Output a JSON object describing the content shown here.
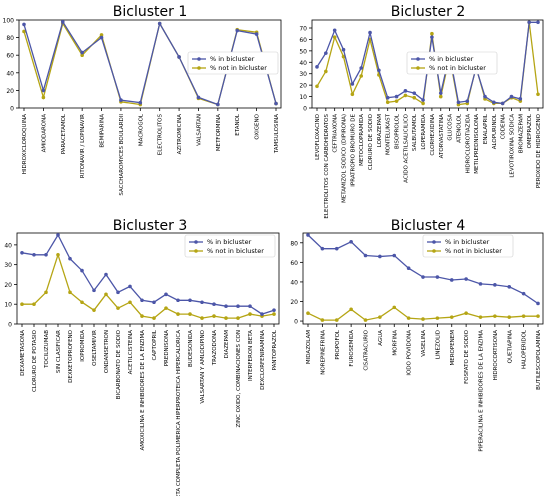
{
  "series_colors": {
    "in": "#4c56a8",
    "not_in": "#b5a514"
  },
  "chart_data": [
    {
      "type": "line",
      "title": "Bicluster 1",
      "legend": "center-right",
      "ylim": [
        0,
        100
      ],
      "yticks": [
        0,
        20,
        40,
        60,
        80,
        100
      ],
      "categories": [
        "HIDROXICLOROQUINA",
        "AMIODARONA",
        "PARACETAMOL",
        "RITONAVIR / LOPINAVIR",
        "BEMIPARINA",
        "SACCHAROMYCES BOULARDII",
        "MACROGOL",
        "ELECTROLITOS",
        "AZITROMICINA",
        "VALSARTAN",
        "METFORMINA",
        "ETANOL",
        "OXIGENO",
        "TAMSULOSINA"
      ],
      "series": [
        {
          "name": "% in bicluster",
          "values": [
            95,
            20,
            98,
            63,
            80,
            9,
            6,
            96,
            58,
            12,
            4,
            88,
            84,
            5
          ]
        },
        {
          "name": "% not in bicluster",
          "values": [
            87,
            12,
            96,
            60,
            83,
            7,
            4,
            96,
            58,
            11,
            4,
            89,
            86,
            5
          ]
        }
      ]
    },
    {
      "type": "line",
      "title": "Bicluster 2",
      "legend": "center-right",
      "ylim": [
        0,
        77
      ],
      "yticks": [
        0,
        10,
        20,
        30,
        40,
        50,
        60,
        70
      ],
      "categories": [
        "LEVOFLOXACINO",
        "ELECTROLITOS CON CARBOHIDRATOS",
        "CEFTRIAXONA",
        "METAMIZOL SODICO (DIPIRONA)",
        "IPRATROPIO BROMURO DE",
        "METOCLOPRAMIDA",
        "CLORURO DE SODIO",
        "LORAZEPAM",
        "MONTELUKAST",
        "BISOPROLOL",
        "ACIDO ACETILSALICILICO",
        "SALBUTAMOL",
        "LOPERAMIDA",
        "CLORHEXIDINA",
        "ATORVASTATINA",
        "GLUCOSA",
        "ATENOLOL",
        "HIDROCLOROTIAZIDA",
        "METILPREDNISOLONA",
        "ENALAPRIL",
        "ALOPURINOL",
        "CODEINA",
        "LEVOTIROXINA SODICA",
        "BROMAZEPAM",
        "OMEPRAZOL",
        "PEROXIDO DE HIDROGENO"
      ],
      "series": [
        {
          "name": "% in bicluster",
          "values": [
            36,
            48,
            68,
            51,
            21,
            35,
            66,
            33,
            9,
            10,
            15,
            13,
            7,
            62,
            13,
            47,
            5,
            6,
            35,
            10,
            5,
            4,
            10,
            8,
            75,
            75
          ]
        },
        {
          "name": "% not in bicluster",
          "values": [
            19,
            32,
            62,
            45,
            12,
            28,
            60,
            29,
            5,
            6,
            11,
            9,
            4,
            65,
            10,
            45,
            3,
            4,
            36,
            8,
            4,
            4,
            9,
            6,
            75,
            12
          ]
        }
      ]
    },
    {
      "type": "line",
      "title": "Bicluster 3",
      "legend": "top-right",
      "ylim": [
        0,
        46
      ],
      "yticks": [
        0,
        10,
        20,
        30,
        40
      ],
      "categories": [
        "DEXAMETASONA",
        "CLORURO DE POTASIO",
        "TOCILIZUMAB",
        "SIN CLASIFICAR",
        "DEXKETOPROFENO",
        "IOPROMIDA",
        "OSELTAMIVIR",
        "ONDANSETRON",
        "BICARBONATO DE SODIO",
        "ACETILCISTEINA",
        "AMOXICILINA E INHIBIDORES DE LA ENZIMA",
        "CAPTOPRIL",
        "PREDNISONA",
        "DIETA COMPLETA POLIMERICA HIPERPROTEICA HIPERCALORICA",
        "BUDESONIDA",
        "VALSARTAN Y AMLODIPINO",
        "TRAZODONA",
        "DIAZEPAM",
        "ZINC OXIDO, COMBINACIONES CON",
        "INTERFERON BETA",
        "DEXCLORFENIRAMINA",
        "PANTOPRAZOL"
      ],
      "series": [
        {
          "name": "% in bicluster",
          "values": [
            36,
            35,
            35,
            45,
            33,
            27,
            17,
            25,
            16,
            19,
            12,
            11,
            15,
            12,
            12,
            11,
            10,
            9,
            9,
            9,
            5,
            7
          ]
        },
        {
          "name": "% not in bicluster",
          "values": [
            10,
            10,
            16,
            35,
            16,
            11,
            7,
            15,
            8,
            11,
            4,
            3,
            8,
            5,
            5,
            3,
            4,
            3,
            3,
            5,
            4,
            5
          ]
        }
      ]
    },
    {
      "type": "line",
      "title": "Bicluster 4",
      "legend": "top-right",
      "ylim": [
        -3,
        90
      ],
      "yticks": [
        0,
        20,
        40,
        60,
        80
      ],
      "categories": [
        "MIDAZOLAM",
        "NOREPINEFRINA",
        "PROPOFOL",
        "FUROSEMIDA",
        "CISATRACURIO",
        "AGUA",
        "MORFINA",
        "IODO POVIDONA",
        "VASELINA",
        "LINEZOLID",
        "MEROPENEM",
        "FOSFATO DE SODIO",
        "PIPERACILINA E INHIBIDORES DE LA ENZIMA",
        "HIDROCORTISONA",
        "QUETIAPINA",
        "HALOPERIDOL",
        "BUTILESCOPOLAMINA"
      ],
      "series": [
        {
          "name": "% in bicluster",
          "values": [
            88,
            74,
            74,
            81,
            67,
            66,
            67,
            54,
            45,
            45,
            42,
            43,
            38,
            37,
            35,
            28,
            18
          ]
        },
        {
          "name": "% not in bicluster",
          "values": [
            8,
            1,
            1,
            12,
            1,
            4,
            14,
            3,
            2,
            3,
            4,
            8,
            4,
            5,
            4,
            5,
            5
          ]
        }
      ]
    }
  ]
}
